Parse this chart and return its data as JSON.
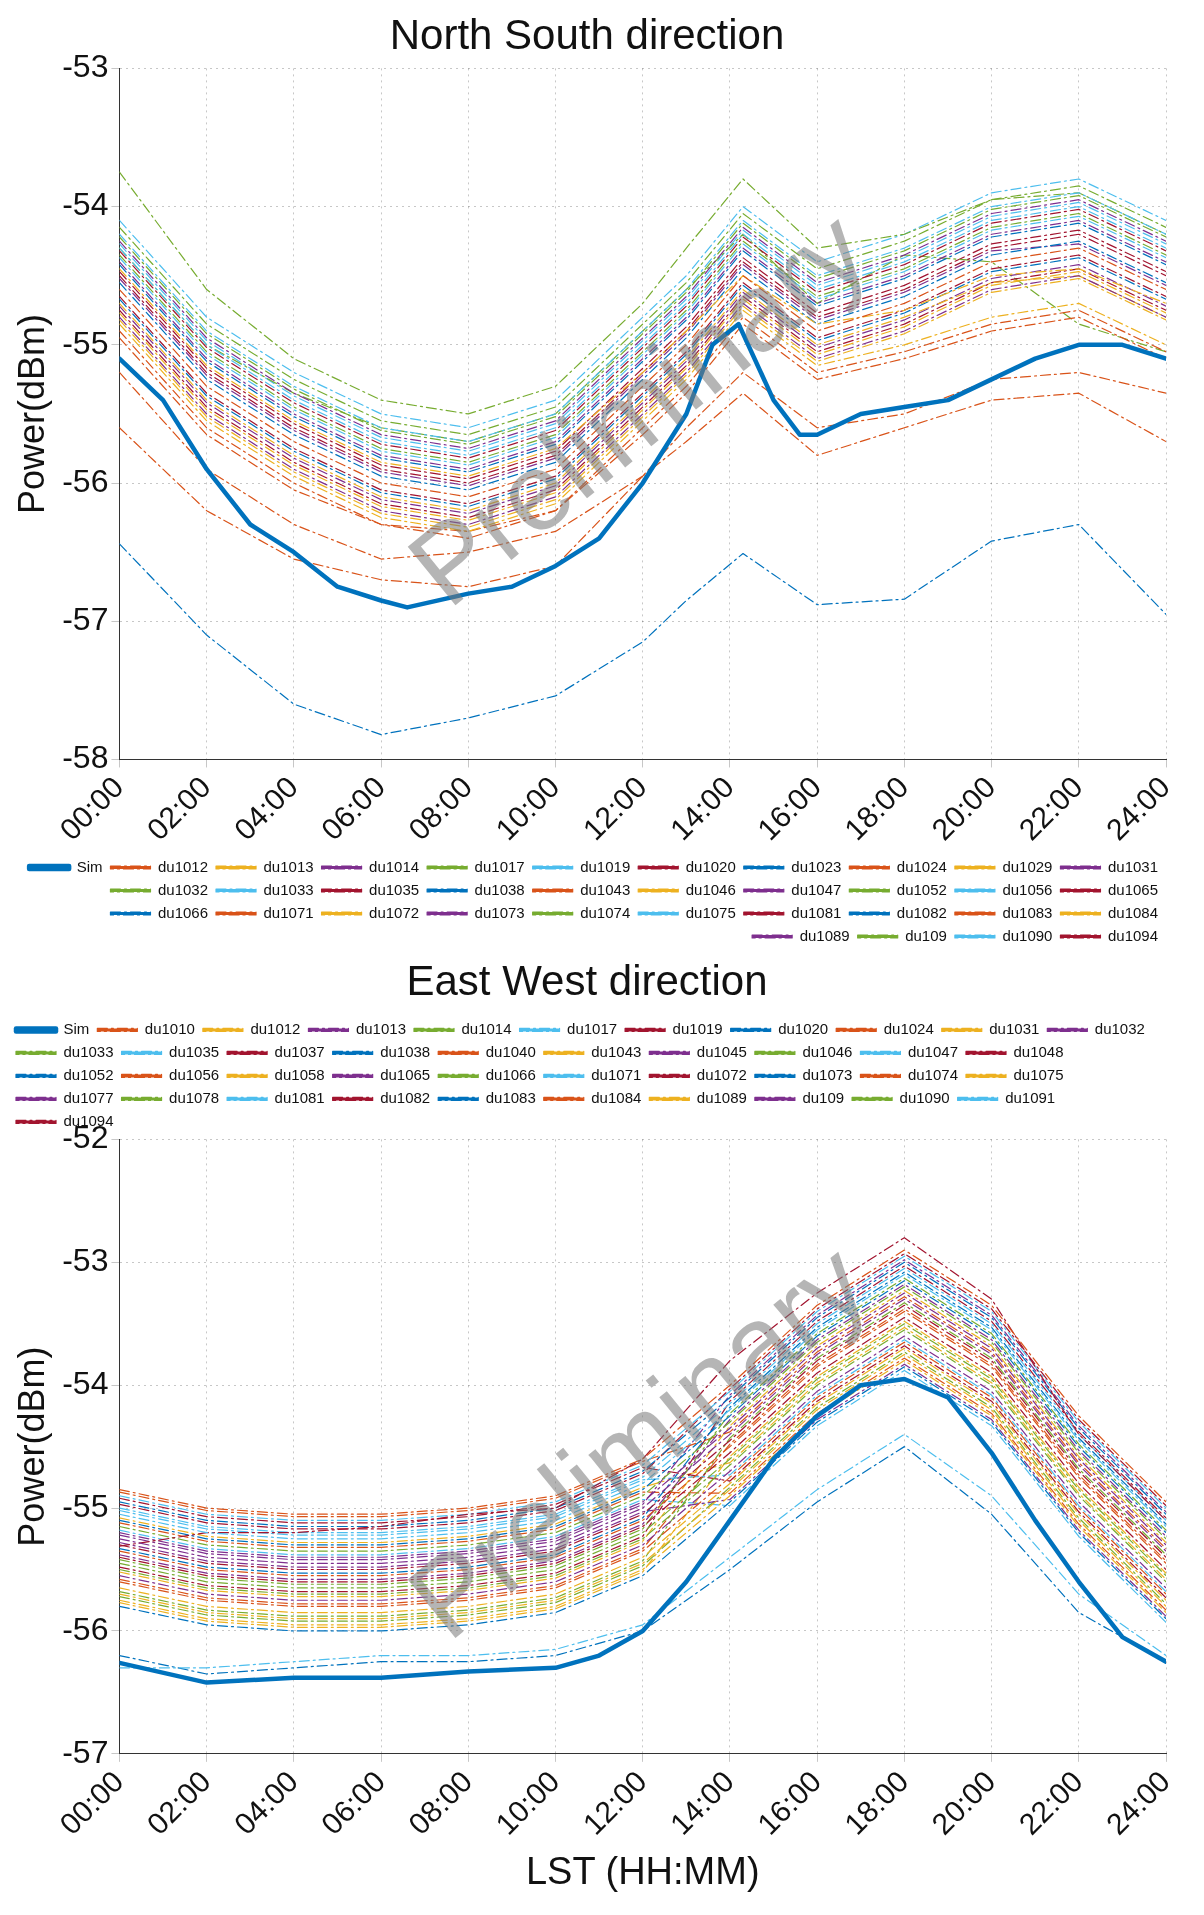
{
  "chart_data": [
    {
      "type": "line",
      "title": "North South direction",
      "ylabel": "Power(dBm)",
      "xlim": [
        0,
        24
      ],
      "ylim": [
        -58,
        -53
      ],
      "yticks": [
        -58,
        -57,
        -56,
        -55,
        -54,
        -53
      ],
      "xticks": [
        {
          "value": 0,
          "label": "00:00"
        },
        {
          "value": 2,
          "label": "02:00"
        },
        {
          "value": 4,
          "label": "04:00"
        },
        {
          "value": 6,
          "label": "06:00"
        },
        {
          "value": 8,
          "label": "08:00"
        },
        {
          "value": 10,
          "label": "10:00"
        },
        {
          "value": 12,
          "label": "12:00"
        },
        {
          "value": 14,
          "label": "14:00"
        },
        {
          "value": 16,
          "label": "16:00"
        },
        {
          "value": 18,
          "label": "18:00"
        },
        {
          "value": 20,
          "label": "20:00"
        },
        {
          "value": 22,
          "label": "22:00"
        },
        {
          "value": 24,
          "label": "24:00"
        }
      ],
      "grid": true,
      "legend": "bottom right",
      "marker": "none",
      "annotations": [
        "Preliminary"
      ],
      "x": [
        0,
        2,
        4,
        6,
        8,
        10,
        12,
        13,
        14.3,
        16,
        18,
        20,
        22,
        24
      ],
      "series": [
        {
          "name": "Sim",
          "color": "#0072bd",
          "line_style": "solid",
          "x": [
            0,
            1,
            2,
            3,
            4,
            5,
            6,
            6.6,
            8,
            9,
            10,
            11,
            12,
            13,
            13.6,
            14.2,
            15,
            15.6,
            16,
            17,
            18,
            19,
            20,
            21,
            22,
            23,
            24
          ],
          "values": [
            -55.1,
            -55.4,
            -55.9,
            -56.3,
            -56.5,
            -56.75,
            -56.85,
            -56.9,
            -56.8,
            -56.75,
            -56.6,
            -56.4,
            -56.0,
            -55.5,
            -55.0,
            -54.85,
            -55.4,
            -55.65,
            -55.65,
            -55.5,
            -55.45,
            -55.4,
            -55.25,
            -55.1,
            -55.0,
            -55.0,
            -55.1
          ]
        },
        {
          "name": "du1012",
          "color": "#d95319",
          "line_style": "dashed",
          "values": [
            -54.6,
            -55.3,
            -55.7,
            -56.0,
            -56.1,
            -55.9,
            -55.3,
            -55.0,
            -54.5,
            -54.9,
            -54.7,
            -54.4,
            -54.3,
            -54.6
          ]
        },
        {
          "name": "du1013",
          "color": "#edb120",
          "line_style": "dashed",
          "values": [
            -54.45,
            -55.15,
            -55.55,
            -55.85,
            -55.95,
            -55.75,
            -55.2,
            -54.9,
            -54.5,
            -54.85,
            -54.75,
            -54.5,
            -54.45,
            -54.7
          ]
        },
        {
          "name": "du1014",
          "color": "#7e2f8e",
          "line_style": "dashed",
          "values": [
            -54.8,
            -55.5,
            -55.9,
            -56.2,
            -56.3,
            -56.1,
            -55.5,
            -55.2,
            -54.7,
            -55.1,
            -54.9,
            -54.6,
            -54.5,
            -54.8
          ]
        },
        {
          "name": "du1017",
          "color": "#77ac30",
          "line_style": "dashed",
          "values": [
            -54.15,
            -54.85,
            -55.25,
            -55.55,
            -55.65,
            -55.45,
            -54.85,
            -54.55,
            -54.05,
            -54.45,
            -54.25,
            -53.95,
            -53.85,
            -54.15
          ]
        },
        {
          "name": "du1019",
          "color": "#4dbeee",
          "line_style": "dashed",
          "values": [
            -54.2,
            -54.9,
            -55.3,
            -55.6,
            -55.7,
            -55.5,
            -54.9,
            -54.6,
            -54.1,
            -54.5,
            -54.3,
            -54.0,
            -53.9,
            -54.2
          ]
        },
        {
          "name": "du1020",
          "color": "#a2142f",
          "line_style": "dashed",
          "values": [
            -54.5,
            -55.2,
            -55.6,
            -55.9,
            -56.0,
            -55.8,
            -55.2,
            -54.9,
            -54.4,
            -54.8,
            -54.6,
            -54.3,
            -54.2,
            -54.5
          ]
        },
        {
          "name": "du1023",
          "color": "#0072bd",
          "line_style": "dashed",
          "values": [
            -56.44,
            -57.1,
            -57.6,
            -57.82,
            -57.7,
            -57.54,
            -57.15,
            -56.85,
            -56.51,
            -56.88,
            -56.84,
            -56.42,
            -56.3,
            -56.95
          ]
        },
        {
          "name": "du1024",
          "color": "#d95319",
          "line_style": "dashed",
          "values": [
            -55.2,
            -55.9,
            -56.3,
            -56.55,
            -56.5,
            -56.35,
            -55.95,
            -55.7,
            -55.35,
            -55.8,
            -55.6,
            -55.4,
            -55.35,
            -55.7
          ]
        },
        {
          "name": "du1029",
          "color": "#edb120",
          "line_style": "dashed",
          "values": [
            -54.7,
            -55.4,
            -55.8,
            -56.1,
            -56.2,
            -56.0,
            -55.4,
            -55.1,
            -54.6,
            -55.0,
            -54.8,
            -54.55,
            -54.5,
            -54.8
          ]
        },
        {
          "name": "du1031",
          "color": "#7e2f8e",
          "line_style": "dashed",
          "values": [
            -54.4,
            -55.1,
            -55.5,
            -55.8,
            -55.9,
            -55.7,
            -55.1,
            -54.8,
            -54.3,
            -54.7,
            -54.5,
            -54.2,
            -54.1,
            -54.4
          ]
        },
        {
          "name": "du1032",
          "color": "#77ac30",
          "line_style": "dashed",
          "values": [
            -53.75,
            -54.6,
            -55.1,
            -55.4,
            -55.5,
            -55.3,
            -54.7,
            -54.3,
            -53.8,
            -54.3,
            -54.2,
            -53.95,
            -53.9,
            -54.2
          ]
        },
        {
          "name": "du1033",
          "color": "#4dbeee",
          "line_style": "dashed",
          "values": [
            -54.3,
            -55.0,
            -55.4,
            -55.7,
            -55.8,
            -55.6,
            -55.0,
            -54.7,
            -54.2,
            -54.6,
            -54.4,
            -54.1,
            -54.0,
            -54.3
          ]
        },
        {
          "name": "du1035",
          "color": "#a2142f",
          "line_style": "dashed",
          "values": [
            -54.65,
            -55.35,
            -55.75,
            -56.05,
            -56.15,
            -55.95,
            -55.35,
            -55.05,
            -54.55,
            -54.95,
            -54.75,
            -54.45,
            -54.35,
            -54.65
          ]
        },
        {
          "name": "du1038",
          "color": "#0072bd",
          "line_style": "dashed",
          "values": [
            -54.55,
            -55.25,
            -55.65,
            -55.95,
            -56.05,
            -55.85,
            -55.25,
            -54.95,
            -54.45,
            -54.85,
            -54.65,
            -54.35,
            -54.25,
            -54.55
          ]
        },
        {
          "name": "du1043",
          "color": "#d95319",
          "line_style": "dashed",
          "values": [
            -55.6,
            -56.2,
            -56.55,
            -56.7,
            -56.75,
            -56.6,
            -55.95,
            -55.6,
            -55.2,
            -55.6,
            -55.5,
            -55.25,
            -55.2,
            -55.35
          ]
        },
        {
          "name": "du1046",
          "color": "#edb120",
          "line_style": "dashed",
          "values": [
            -54.85,
            -55.55,
            -55.95,
            -56.25,
            -56.35,
            -56.15,
            -55.55,
            -55.25,
            -54.75,
            -55.15,
            -55.0,
            -54.8,
            -54.7,
            -55.0
          ]
        },
        {
          "name": "du1047",
          "color": "#7e2f8e",
          "line_style": "dashed",
          "values": [
            -54.25,
            -54.95,
            -55.35,
            -55.65,
            -55.75,
            -55.55,
            -54.95,
            -54.65,
            -54.15,
            -54.55,
            -54.35,
            -54.05,
            -53.95,
            -54.25
          ]
        },
        {
          "name": "du1052",
          "color": "#77ac30",
          "line_style": "dashed",
          "values": [
            -54.35,
            -55.05,
            -55.45,
            -55.75,
            -55.85,
            -55.65,
            -55.05,
            -54.75,
            -54.25,
            -54.65,
            -54.45,
            -54.15,
            -54.05,
            -54.35
          ]
        },
        {
          "name": "du1056",
          "color": "#4dbeee",
          "line_style": "dashed",
          "values": [
            -54.1,
            -54.8,
            -55.2,
            -55.5,
            -55.6,
            -55.4,
            -54.8,
            -54.5,
            -54.0,
            -54.4,
            -54.2,
            -53.9,
            -53.8,
            -54.1
          ]
        },
        {
          "name": "du1065",
          "color": "#a2142f",
          "line_style": "dashed",
          "values": [
            -54.75,
            -55.45,
            -55.85,
            -56.15,
            -56.25,
            -56.05,
            -55.45,
            -55.15,
            -54.65,
            -55.05,
            -54.85,
            -54.55,
            -54.45,
            -54.75
          ]
        },
        {
          "name": "du1066",
          "color": "#0072bd",
          "line_style": "dashed",
          "values": [
            -54.42,
            -55.12,
            -55.52,
            -55.82,
            -55.92,
            -55.72,
            -55.12,
            -54.82,
            -54.32,
            -54.72,
            -54.52,
            -54.22,
            -54.12,
            -54.42
          ]
        },
        {
          "name": "du1071",
          "color": "#d95319",
          "line_style": "dashed",
          "values": [
            -54.9,
            -55.6,
            -56.0,
            -56.3,
            -56.35,
            -56.2,
            -55.6,
            -55.3,
            -54.8,
            -55.2,
            -55.05,
            -54.85,
            -54.75,
            -55.05
          ]
        },
        {
          "name": "du1072",
          "color": "#edb120",
          "line_style": "dashed",
          "values": [
            -54.82,
            -55.52,
            -55.92,
            -56.22,
            -56.32,
            -56.12,
            -55.52,
            -55.22,
            -54.72,
            -55.12,
            -54.92,
            -54.62,
            -54.52,
            -54.82
          ]
        },
        {
          "name": "du1073",
          "color": "#7e2f8e",
          "line_style": "dashed",
          "values": [
            -54.72,
            -55.42,
            -55.82,
            -56.12,
            -56.22,
            -56.02,
            -55.42,
            -55.12,
            -54.62,
            -55.02,
            -54.82,
            -54.52,
            -54.42,
            -54.72
          ]
        },
        {
          "name": "du1074",
          "color": "#77ac30",
          "line_style": "dashed",
          "values": [
            -54.22,
            -54.92,
            -55.32,
            -55.62,
            -55.72,
            -55.52,
            -54.92,
            -54.62,
            -54.12,
            -54.52,
            -54.32,
            -54.02,
            -53.92,
            -54.22
          ]
        },
        {
          "name": "du1075",
          "color": "#4dbeee",
          "line_style": "dashed",
          "values": [
            -54.37,
            -55.07,
            -55.47,
            -55.77,
            -55.87,
            -55.67,
            -55.07,
            -54.77,
            -54.27,
            -54.67,
            -54.47,
            -54.17,
            -54.07,
            -54.37
          ]
        },
        {
          "name": "du1081",
          "color": "#a2142f",
          "line_style": "dashed",
          "values": [
            -54.32,
            -55.02,
            -55.42,
            -55.72,
            -55.82,
            -55.62,
            -55.02,
            -54.72,
            -54.22,
            -54.62,
            -54.42,
            -54.12,
            -54.02,
            -54.32
          ]
        },
        {
          "name": "du1082",
          "color": "#0072bd",
          "line_style": "dashed",
          "values": [
            -54.67,
            -55.37,
            -55.77,
            -56.07,
            -56.17,
            -55.97,
            -55.37,
            -55.07,
            -54.57,
            -54.97,
            -54.77,
            -54.47,
            -54.37,
            -54.67
          ]
        },
        {
          "name": "du1083",
          "color": "#d95319",
          "line_style": "dashed",
          "values": [
            -54.95,
            -55.65,
            -56.05,
            -56.3,
            -56.4,
            -56.2,
            -55.65,
            -55.35,
            -54.85,
            -55.25,
            -55.1,
            -54.9,
            -54.8,
            -55.1
          ]
        },
        {
          "name": "du1084",
          "color": "#edb120",
          "line_style": "dashed",
          "values": [
            -54.77,
            -55.47,
            -55.87,
            -56.17,
            -56.27,
            -56.07,
            -55.47,
            -55.17,
            -54.67,
            -55.07,
            -54.87,
            -54.57,
            -54.47,
            -54.77
          ]
        },
        {
          "name": "du1089",
          "color": "#7e2f8e",
          "line_style": "dashed",
          "values": [
            -54.52,
            -55.22,
            -55.62,
            -55.92,
            -56.02,
            -55.82,
            -55.22,
            -54.92,
            -54.42,
            -54.82,
            -54.62,
            -54.32,
            -54.27,
            -54.57
          ]
        },
        {
          "name": "du109",
          "color": "#77ac30",
          "line_style": "dashed",
          "values": [
            -54.3,
            -55.0,
            -55.35,
            -55.6,
            -55.7,
            -55.5,
            -54.9,
            -54.6,
            -54.2,
            -54.7,
            -54.35,
            -54.4,
            -54.85,
            -55.05
          ]
        },
        {
          "name": "du1090",
          "color": "#4dbeee",
          "line_style": "dashed",
          "values": [
            -54.27,
            -54.97,
            -55.37,
            -55.67,
            -55.77,
            -55.57,
            -54.97,
            -54.67,
            -54.17,
            -54.57,
            -54.37,
            -54.07,
            -53.97,
            -54.27
          ]
        },
        {
          "name": "du1094",
          "color": "#a2142f",
          "line_style": "dashed",
          "values": [
            -54.47,
            -55.17,
            -55.57,
            -55.87,
            -55.97,
            -55.77,
            -55.17,
            -54.87,
            -54.37,
            -54.77,
            -54.57,
            -54.27,
            -54.17,
            -54.47
          ]
        }
      ]
    },
    {
      "type": "line",
      "title": "East West direction",
      "ylabel": "Power(dBm)",
      "xlabel": "LST (HH:MM)",
      "xlim": [
        0,
        24
      ],
      "ylim": [
        -57,
        -52
      ],
      "yticks": [
        -57,
        -56,
        -55,
        -54,
        -53,
        -52
      ],
      "xticks": [
        {
          "value": 0,
          "label": "00:00"
        },
        {
          "value": 2,
          "label": "02:00"
        },
        {
          "value": 4,
          "label": "04:00"
        },
        {
          "value": 6,
          "label": "06:00"
        },
        {
          "value": 8,
          "label": "08:00"
        },
        {
          "value": 10,
          "label": "10:00"
        },
        {
          "value": 12,
          "label": "12:00"
        },
        {
          "value": 14,
          "label": "14:00"
        },
        {
          "value": 16,
          "label": "16:00"
        },
        {
          "value": 18,
          "label": "18:00"
        },
        {
          "value": 20,
          "label": "20:00"
        },
        {
          "value": 22,
          "label": "22:00"
        },
        {
          "value": 24,
          "label": "24:00"
        }
      ],
      "grid": true,
      "legend": "top left",
      "marker": "none",
      "annotations": [
        "Preliminary"
      ],
      "x": [
        0,
        2,
        4,
        6,
        8,
        10,
        12,
        14,
        16,
        18,
        20,
        22,
        24
      ],
      "series": [
        {
          "name": "Sim",
          "color": "#0072bd",
          "line_style": "solid",
          "x": [
            0,
            2,
            4,
            6,
            8,
            10,
            11,
            12,
            13,
            14,
            15,
            16,
            17,
            18,
            19,
            20,
            21,
            22,
            23,
            24
          ],
          "values": [
            -56.26,
            -56.42,
            -56.38,
            -56.38,
            -56.33,
            -56.3,
            -56.2,
            -56.0,
            -55.6,
            -55.1,
            -54.6,
            -54.25,
            -54.0,
            -53.95,
            -54.1,
            -54.55,
            -55.1,
            -55.6,
            -56.05,
            -56.25
          ]
        },
        {
          "name": "du1010",
          "color": "#d95319",
          "line_style": "dashed",
          "values": [
            -54.85,
            -55.0,
            -55.05,
            -55.05,
            -55.0,
            -54.9,
            -54.6,
            -54.0,
            -53.35,
            -52.9,
            -53.35,
            -54.25,
            -54.95
          ]
        },
        {
          "name": "du1012",
          "color": "#edb120",
          "line_style": "dashed",
          "values": [
            -55.65,
            -55.8,
            -55.85,
            -55.85,
            -55.8,
            -55.7,
            -55.4,
            -54.8,
            -54.15,
            -53.7,
            -54.15,
            -55.05,
            -55.75
          ]
        },
        {
          "name": "du1013",
          "color": "#7e2f8e",
          "line_style": "dashed",
          "values": [
            -55.25,
            -55.4,
            -55.45,
            -55.45,
            -55.4,
            -55.3,
            -55.0,
            -54.4,
            -53.75,
            -53.3,
            -53.75,
            -54.65,
            -55.35
          ]
        },
        {
          "name": "du1014",
          "color": "#77ac30",
          "line_style": "dashed",
          "values": [
            -55.45,
            -55.6,
            -55.65,
            -55.65,
            -55.6,
            -55.5,
            -55.2,
            -54.6,
            -53.95,
            -53.5,
            -53.95,
            -54.85,
            -55.55
          ]
        },
        {
          "name": "du1017",
          "color": "#4dbeee",
          "line_style": "dashed",
          "values": [
            -55.05,
            -55.2,
            -55.25,
            -55.25,
            -55.2,
            -55.1,
            -54.8,
            -54.2,
            -53.55,
            -53.1,
            -53.55,
            -54.45,
            -55.15
          ]
        },
        {
          "name": "du1019",
          "color": "#a2142f",
          "line_style": "dashed",
          "values": [
            -55.31,
            -55.2,
            -55.2,
            -55.15,
            -55.05,
            -55.0,
            -54.6,
            -53.8,
            -53.25,
            -52.8,
            -53.3,
            -54.4,
            -55.1
          ]
        },
        {
          "name": "du1020",
          "color": "#0072bd",
          "line_style": "dashed",
          "values": [
            -54.95,
            -55.1,
            -55.15,
            -55.15,
            -55.1,
            -55.0,
            -54.7,
            -54.1,
            -53.45,
            -53.0,
            -53.45,
            -54.35,
            -55.05
          ]
        },
        {
          "name": "du1024",
          "color": "#d95319",
          "line_style": "dashed",
          "values": [
            -55.35,
            -55.5,
            -55.55,
            -55.55,
            -55.5,
            -55.4,
            -55.1,
            -54.5,
            -53.85,
            -53.4,
            -53.85,
            -54.75,
            -55.45
          ]
        },
        {
          "name": "du1031",
          "color": "#edb120",
          "line_style": "dashed",
          "values": [
            -55.75,
            -55.9,
            -55.95,
            -55.95,
            -55.9,
            -55.8,
            -55.5,
            -54.9,
            -54.25,
            -53.8,
            -54.25,
            -55.15,
            -55.85
          ]
        },
        {
          "name": "du1032",
          "color": "#7e2f8e",
          "line_style": "dashed",
          "values": [
            -55.55,
            -55.7,
            -55.75,
            -55.75,
            -55.7,
            -55.6,
            -55.3,
            -54.7,
            -54.05,
            -53.6,
            -54.05,
            -54.95,
            -55.65
          ]
        },
        {
          "name": "du1033",
          "color": "#77ac30",
          "line_style": "dashed",
          "values": [
            -55.15,
            -55.3,
            -55.35,
            -55.35,
            -55.3,
            -55.2,
            -54.9,
            -54.3,
            -53.65,
            -53.2,
            -53.65,
            -54.55,
            -55.25
          ]
        },
        {
          "name": "du1035",
          "color": "#4dbeee",
          "line_style": "dashed",
          "values": [
            -54.9,
            -55.05,
            -55.1,
            -55.1,
            -55.05,
            -54.95,
            -54.65,
            -54.05,
            -53.4,
            -52.95,
            -53.4,
            -54.3,
            -55.0
          ]
        },
        {
          "name": "du1037",
          "color": "#a2142f",
          "line_style": "dashed",
          "values": [
            -55.3,
            -55.45,
            -55.5,
            -55.5,
            -55.45,
            -55.35,
            -55.05,
            -54.45,
            -53.8,
            -53.35,
            -53.8,
            -54.7,
            -55.4
          ]
        },
        {
          "name": "du1038",
          "color": "#0072bd",
          "line_style": "dashed",
          "values": [
            -55.1,
            -55.25,
            -55.3,
            -55.3,
            -55.25,
            -55.15,
            -54.85,
            -54.25,
            -53.6,
            -53.15,
            -53.6,
            -54.5,
            -55.2
          ]
        },
        {
          "name": "du1040",
          "color": "#d95319",
          "line_style": "dashed",
          "values": [
            -55.6,
            -55.75,
            -55.8,
            -55.8,
            -55.75,
            -55.65,
            -55.35,
            -54.75,
            -54.1,
            -53.65,
            -54.1,
            -55.0,
            -55.7
          ]
        },
        {
          "name": "du1043",
          "color": "#edb120",
          "line_style": "dashed",
          "values": [
            -55.7,
            -55.85,
            -55.9,
            -55.9,
            -55.85,
            -55.75,
            -55.45,
            -54.85,
            -54.2,
            -53.75,
            -54.2,
            -55.1,
            -55.8
          ]
        },
        {
          "name": "du1045",
          "color": "#7e2f8e",
          "line_style": "dashed",
          "values": [
            -55.2,
            -55.35,
            -55.4,
            -55.4,
            -55.35,
            -55.25,
            -54.95,
            -54.35,
            -53.7,
            -53.25,
            -53.7,
            -54.6,
            -55.3
          ]
        },
        {
          "name": "du1046",
          "color": "#77ac30",
          "line_style": "dashed",
          "values": [
            -55.5,
            -55.65,
            -55.7,
            -55.7,
            -55.65,
            -55.55,
            -55.25,
            -54.65,
            -54.0,
            -53.55,
            -54.0,
            -54.9,
            -55.6
          ]
        },
        {
          "name": "du1047",
          "color": "#4dbeee",
          "line_style": "dashed",
          "values": [
            -55.0,
            -55.15,
            -55.2,
            -55.2,
            -55.15,
            -55.05,
            -54.75,
            -54.15,
            -53.5,
            -53.05,
            -53.5,
            -54.4,
            -55.1
          ]
        },
        {
          "name": "du1048",
          "color": "#a2142f",
          "line_style": "dashed",
          "values": [
            -55.4,
            -55.55,
            -55.6,
            -55.6,
            -55.55,
            -55.45,
            -55.15,
            -54.55,
            -53.9,
            -53.45,
            -53.9,
            -54.8,
            -55.5
          ]
        },
        {
          "name": "du1052",
          "color": "#0072bd",
          "line_style": "dashed",
          "values": [
            -55.8,
            -55.95,
            -56.0,
            -56.0,
            -55.95,
            -55.85,
            -55.55,
            -54.95,
            -54.3,
            -53.85,
            -54.3,
            -55.2,
            -55.9
          ]
        },
        {
          "name": "du1056",
          "color": "#d95319",
          "line_style": "dashed",
          "values": [
            -54.87,
            -55.02,
            -55.07,
            -55.07,
            -55.02,
            -54.92,
            -54.62,
            -54.38,
            -53.73,
            -53.28,
            -53.73,
            -54.63,
            -55.33
          ]
        },
        {
          "name": "du1058",
          "color": "#edb120",
          "line_style": "dashed",
          "values": [
            -55.77,
            -55.92,
            -55.97,
            -55.97,
            -55.92,
            -55.82,
            -55.52,
            -54.58,
            -53.93,
            -53.48,
            -53.93,
            -54.83,
            -55.53
          ]
        },
        {
          "name": "du1065",
          "color": "#7e2f8e",
          "line_style": "dashed",
          "values": [
            -55.22,
            -55.37,
            -55.42,
            -55.42,
            -55.37,
            -55.27,
            -54.97,
            -54.08,
            -53.43,
            -52.98,
            -53.43,
            -54.33,
            -55.03
          ]
        },
        {
          "name": "du1066",
          "color": "#77ac30",
          "line_style": "dashed",
          "values": [
            -55.68,
            -55.83,
            -55.88,
            -55.88,
            -55.83,
            -55.73,
            -55.43,
            -54.43,
            -53.78,
            -53.33,
            -53.78,
            -54.68,
            -55.38
          ]
        },
        {
          "name": "du1071",
          "color": "#4dbeee",
          "line_style": "dashed",
          "values": [
            -55.02,
            -55.17,
            -55.22,
            -55.22,
            -55.17,
            -55.07,
            -54.77,
            -54.73,
            -54.08,
            -53.63,
            -54.08,
            -54.98,
            -55.68
          ]
        },
        {
          "name": "du1072",
          "color": "#a2142f",
          "line_style": "dashed",
          "values": [
            -54.92,
            -55.07,
            -55.12,
            -55.12,
            -55.07,
            -54.97,
            -54.67,
            -54.78,
            -54.13,
            -53.68,
            -54.13,
            -55.03,
            -55.73
          ]
        },
        {
          "name": "du1073",
          "color": "#0072bd",
          "line_style": "dashed",
          "values": [
            -55.33,
            -55.48,
            -55.53,
            -55.53,
            -55.48,
            -55.38,
            -55.08,
            -54.18,
            -53.53,
            -53.08,
            -53.53,
            -54.43,
            -55.13
          ]
        },
        {
          "name": "du1074",
          "color": "#d95319",
          "line_style": "dashed",
          "values": [
            -55.12,
            -55.27,
            -55.32,
            -55.32,
            -55.27,
            -55.17,
            -54.87,
            -54.88,
            -54.23,
            -53.78,
            -54.23,
            -55.13,
            -55.83
          ]
        },
        {
          "name": "du1075",
          "color": "#edb120",
          "line_style": "dashed",
          "values": [
            -55.52,
            -55.67,
            -55.72,
            -55.72,
            -55.67,
            -55.57,
            -55.27,
            -54.33,
            -53.68,
            -53.23,
            -53.68,
            -54.58,
            -55.28
          ]
        },
        {
          "name": "du1077",
          "color": "#7e2f8e",
          "line_style": "dashed",
          "values": [
            -55.28,
            -55.43,
            -55.48,
            -55.48,
            -55.43,
            -55.33,
            -55.03,
            -54.93,
            -54.28,
            -53.83,
            -54.28,
            -55.18,
            -55.88
          ]
        },
        {
          "name": "du1078",
          "color": "#77ac30",
          "line_style": "dashed",
          "values": [
            -55.42,
            -55.57,
            -55.62,
            -55.62,
            -55.57,
            -55.47,
            -55.17,
            -54.23,
            -53.58,
            -53.13,
            -53.58,
            -54.48,
            -55.18
          ]
        },
        {
          "name": "du1081",
          "color": "#4dbeee",
          "line_style": "dashed",
          "values": [
            -56.3,
            -56.3,
            -56.25,
            -56.2,
            -56.2,
            -56.15,
            -55.95,
            -55.4,
            -54.85,
            -54.4,
            -54.9,
            -55.7,
            -56.2
          ]
        },
        {
          "name": "du1082",
          "color": "#a2142f",
          "line_style": "dashed",
          "values": [
            -54.97,
            -55.12,
            -55.17,
            -55.17,
            -55.12,
            -55.02,
            -54.72,
            -54.03,
            -53.38,
            -52.93,
            -53.38,
            -54.28,
            -54.98
          ]
        },
        {
          "name": "du1083",
          "color": "#0072bd",
          "line_style": "dashed",
          "values": [
            -56.2,
            -56.35,
            -56.3,
            -56.25,
            -56.25,
            -56.2,
            -56.0,
            -55.5,
            -54.95,
            -54.5,
            -55.05,
            -55.85,
            -56.25
          ]
        },
        {
          "name": "du1084",
          "color": "#d95319",
          "line_style": "dashed",
          "values": [
            -55.58,
            -55.73,
            -55.78,
            -55.78,
            -55.73,
            -55.63,
            -55.33,
            -54.48,
            -53.83,
            -53.38,
            -53.83,
            -54.73,
            -55.43
          ]
        },
        {
          "name": "du1089",
          "color": "#edb120",
          "line_style": "dashed",
          "values": [
            -55.08,
            -55.23,
            -55.28,
            -55.28,
            -55.23,
            -55.13,
            -54.83,
            -54.63,
            -53.98,
            -53.53,
            -53.98,
            -54.88,
            -55.58
          ]
        },
        {
          "name": "du109",
          "color": "#7e2f8e",
          "line_style": "dashed",
          "values": [
            -55.38,
            -55.53,
            -55.58,
            -55.58,
            -55.53,
            -55.43,
            -55.13,
            -54.28,
            -53.63,
            -53.18,
            -53.63,
            -54.53,
            -55.23
          ]
        },
        {
          "name": "du1090",
          "color": "#77ac30",
          "line_style": "dashed",
          "values": [
            -55.72,
            -55.87,
            -55.92,
            -55.92,
            -55.87,
            -55.77,
            -55.47,
            -54.83,
            -54.18,
            -53.73,
            -54.18,
            -55.08,
            -55.78
          ]
        },
        {
          "name": "du1091",
          "color": "#4dbeee",
          "line_style": "dashed",
          "values": [
            -55.18,
            -55.33,
            -55.38,
            -55.38,
            -55.33,
            -55.23,
            -54.93,
            -54.98,
            -54.33,
            -53.88,
            -54.33,
            -55.23,
            -55.93
          ]
        },
        {
          "name": "du1094",
          "color": "#a2142f",
          "line_style": "dashed",
          "values": [
            -55.48,
            -55.63,
            -55.68,
            -55.68,
            -55.63,
            -55.53,
            -55.23,
            -54.13,
            -53.48,
            -53.03,
            -53.48,
            -54.38,
            -55.08
          ]
        }
      ]
    }
  ]
}
